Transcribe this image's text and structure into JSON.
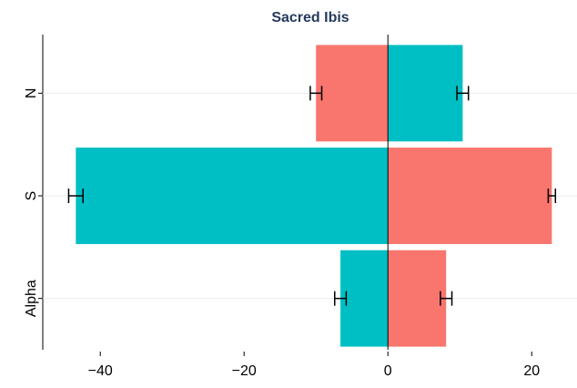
{
  "chart_data": {
    "type": "bar",
    "orientation": "horizontal",
    "title": "Sacred Ibis",
    "categories": [
      "N",
      "S",
      "Alpha"
    ],
    "series": [
      {
        "values": [
          -10.0,
          -43.4,
          -6.6
        ],
        "errors": [
          0.8,
          1.0,
          0.8
        ],
        "colors": [
          "#f8766d",
          "#00bfc4",
          "#00bfc4"
        ]
      },
      {
        "values": [
          10.4,
          22.8,
          8.1
        ],
        "errors": [
          0.8,
          0.5,
          0.8
        ],
        "colors": [
          "#00bfc4",
          "#f8766d",
          "#f8766d"
        ]
      }
    ],
    "xlim": [
      -48,
      26.3
    ],
    "xticks": [
      {
        "value": -40,
        "label": "−40"
      },
      {
        "value": -20,
        "label": "−20"
      },
      0,
      20
    ],
    "grid": true
  }
}
